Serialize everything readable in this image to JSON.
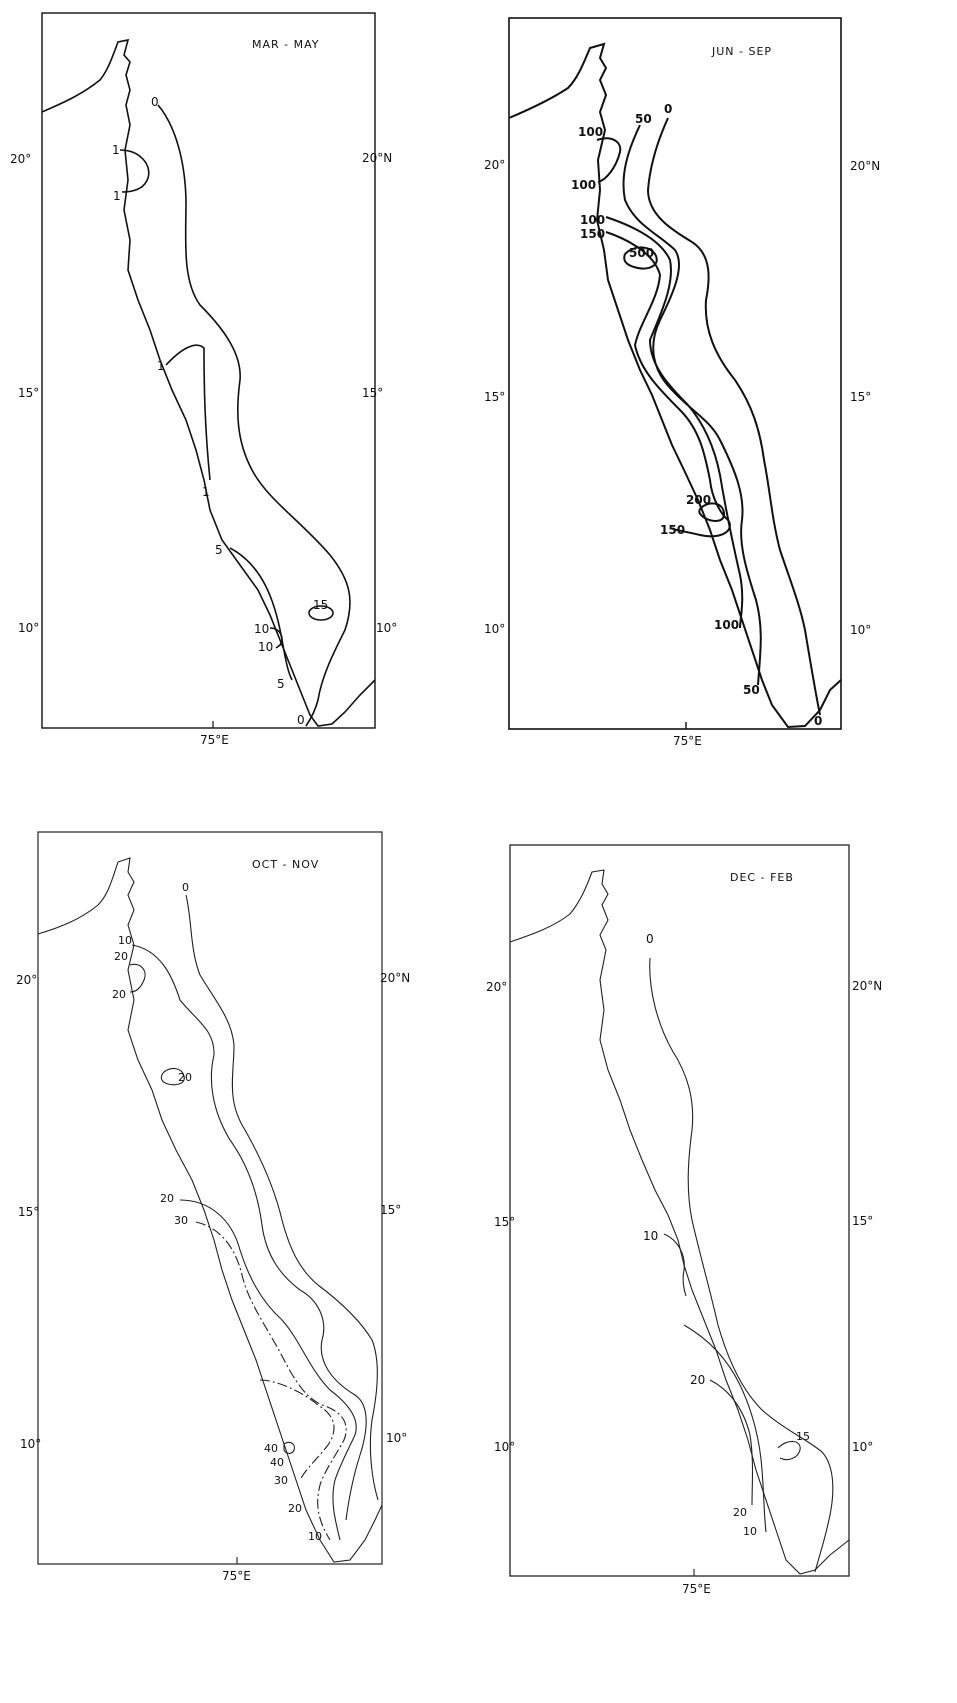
{
  "panels": [
    {
      "id": "mar-may",
      "title": "MAR - MAY",
      "lat_left": [
        "20°",
        "15°",
        "10°"
      ],
      "lat_right": [
        "20°N",
        "15°",
        "10°"
      ],
      "lon_label": "75°E",
      "contour_labels": [
        "0",
        "1",
        "1",
        "1",
        "1",
        "5",
        "15",
        "10",
        "10",
        "5",
        "0"
      ]
    },
    {
      "id": "jun-sep",
      "title": "JUN - SEP",
      "lat_left": [
        "20°",
        "15°",
        "10°"
      ],
      "lat_right": [
        "20°N",
        "15°",
        "10°"
      ],
      "lon_label": "75°E",
      "contour_labels": [
        "100",
        "50",
        "0",
        "100",
        "100",
        "150",
        "500",
        "200",
        "150",
        "100",
        "50",
        "0"
      ]
    },
    {
      "id": "oct-nov",
      "title": "OCT - NOV",
      "lat_left": [
        "20°",
        "15°",
        "10°"
      ],
      "lat_right": [
        "20°N",
        "15°",
        "10°"
      ],
      "lon_label": "75°E",
      "contour_labels": [
        "0",
        "10",
        "20",
        "20",
        "20",
        "20",
        "30",
        "40",
        "40",
        "30",
        "20",
        "10"
      ]
    },
    {
      "id": "dec-feb",
      "title": "DEC - FEB",
      "lat_left": [
        "20°",
        "15°",
        "10°"
      ],
      "lat_right": [
        "20°N",
        "15°",
        "10°"
      ],
      "lon_label": "75°E",
      "contour_labels": [
        "0",
        "10",
        "20",
        "15",
        "20",
        "10"
      ]
    }
  ]
}
